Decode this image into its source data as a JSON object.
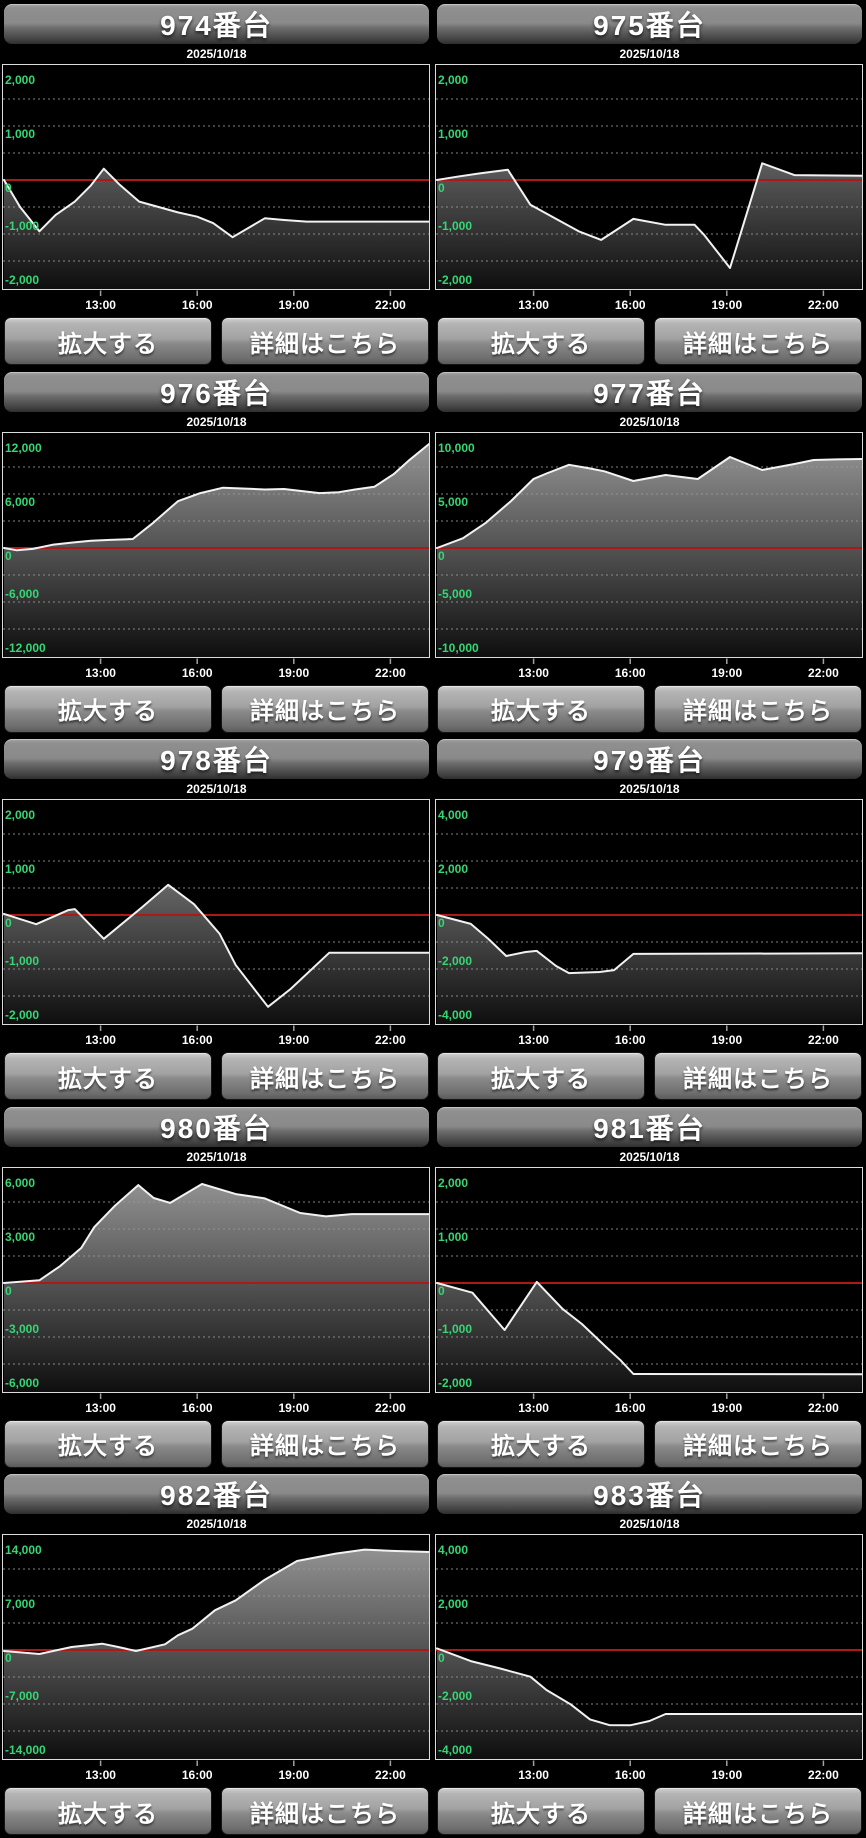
{
  "labels": {
    "date": "2025/10/18",
    "enlarge": "拡大する",
    "details": "詳細はこちら"
  },
  "axis": {
    "x_ticks": [
      "13:00",
      "16:00",
      "19:00",
      "22:00"
    ],
    "tick_hours": [
      13,
      16,
      19,
      22
    ],
    "x_start_hour": 10,
    "x_end_hour": 23.25
  },
  "colors": {
    "background": "#000000",
    "axis_label_green": "#36d674",
    "zero_line_red": "#b01818",
    "data_line": "#f2f2f2",
    "grid_dots": "#999999",
    "chart_border": "#dcdcdc",
    "fill_top": "#a8a8a8",
    "fill_bottom": "#0f0f0f",
    "tick_mark": "#a0a0a0"
  },
  "machines": [
    {
      "id": "974",
      "title": "974番台",
      "range": 2000,
      "y_labels": [
        "2,000",
        "1,000",
        "0",
        "-1,000",
        "-2,000"
      ],
      "points": [
        [
          10,
          0
        ],
        [
          10.5,
          -500
        ],
        [
          11.1,
          -950
        ],
        [
          11.6,
          -650
        ],
        [
          12.2,
          -400
        ],
        [
          12.7,
          -100
        ],
        [
          13.1,
          210
        ],
        [
          13.6,
          -90
        ],
        [
          14.2,
          -400
        ],
        [
          14.8,
          -500
        ],
        [
          15.4,
          -600
        ],
        [
          16.0,
          -680
        ],
        [
          16.5,
          -800
        ],
        [
          17.1,
          -1060
        ],
        [
          18.1,
          -710
        ],
        [
          18.7,
          -740
        ],
        [
          19.4,
          -770
        ],
        [
          23.25,
          -770
        ]
      ]
    },
    {
      "id": "975",
      "title": "975番台",
      "range": 2000,
      "y_labels": [
        "2,000",
        "1,000",
        "0",
        "-1,000",
        "-2,000"
      ],
      "points": [
        [
          10,
          0
        ],
        [
          10.6,
          60
        ],
        [
          11.3,
          120
        ],
        [
          12.2,
          190
        ],
        [
          12.9,
          -460
        ],
        [
          13.7,
          -720
        ],
        [
          14.4,
          -950
        ],
        [
          15.1,
          -1110
        ],
        [
          16.1,
          -720
        ],
        [
          17.1,
          -830
        ],
        [
          18.0,
          -830
        ],
        [
          18.3,
          -1020
        ],
        [
          19.1,
          -1630
        ],
        [
          20.1,
          310
        ],
        [
          21.1,
          90
        ],
        [
          23.25,
          80
        ]
      ]
    },
    {
      "id": "976",
      "title": "976番台",
      "range": 12000,
      "y_labels": [
        "12,000",
        "6,000",
        "0",
        "-6,000",
        "-12,000"
      ],
      "points": [
        [
          10,
          0
        ],
        [
          10.4,
          -250
        ],
        [
          10.9,
          -100
        ],
        [
          11.5,
          350
        ],
        [
          12.1,
          600
        ],
        [
          12.7,
          800
        ],
        [
          13.3,
          900
        ],
        [
          14.0,
          1000
        ],
        [
          14.6,
          2700
        ],
        [
          15.4,
          5200
        ],
        [
          16.1,
          6100
        ],
        [
          16.8,
          6700
        ],
        [
          17.5,
          6600
        ],
        [
          18.1,
          6500
        ],
        [
          18.7,
          6550
        ],
        [
          19.2,
          6350
        ],
        [
          19.8,
          6100
        ],
        [
          20.4,
          6200
        ],
        [
          20.9,
          6500
        ],
        [
          21.5,
          6800
        ],
        [
          22.1,
          8200
        ],
        [
          22.6,
          9800
        ],
        [
          23.25,
          11600
        ]
      ]
    },
    {
      "id": "977",
      "title": "977番台",
      "range": 10000,
      "y_labels": [
        "10,000",
        "5,000",
        "0",
        "-5,000",
        "-10,000"
      ],
      "points": [
        [
          10,
          0
        ],
        [
          10.8,
          900
        ],
        [
          11.5,
          2300
        ],
        [
          12.3,
          4350
        ],
        [
          13.0,
          6400
        ],
        [
          13.4,
          6900
        ],
        [
          14.1,
          7700
        ],
        [
          14.7,
          7400
        ],
        [
          15.2,
          7100
        ],
        [
          16.1,
          6200
        ],
        [
          17.1,
          6760
        ],
        [
          18.1,
          6390
        ],
        [
          19.1,
          8430
        ],
        [
          20.1,
          7220
        ],
        [
          21.1,
          7780
        ],
        [
          21.7,
          8150
        ],
        [
          22.4,
          8200
        ],
        [
          23.25,
          8240
        ]
      ]
    },
    {
      "id": "978",
      "title": "978番台",
      "range": 2000,
      "y_labels": [
        "2,000",
        "1,000",
        "0",
        "-1,000",
        "-2,000"
      ],
      "points": [
        [
          10,
          20
        ],
        [
          11.0,
          -170
        ],
        [
          12.0,
          90
        ],
        [
          12.2,
          110
        ],
        [
          13.1,
          -440
        ],
        [
          14.3,
          150
        ],
        [
          15.1,
          560
        ],
        [
          15.9,
          200
        ],
        [
          16.7,
          -350
        ],
        [
          17.2,
          -930
        ],
        [
          18.2,
          -1700
        ],
        [
          18.9,
          -1370
        ],
        [
          20.1,
          -700
        ],
        [
          23.25,
          -700
        ]
      ]
    },
    {
      "id": "979",
      "title": "979番台",
      "range": 4000,
      "y_labels": [
        "4,000",
        "2,000",
        "0",
        "-2,000",
        "-4,000"
      ],
      "points": [
        [
          10,
          0
        ],
        [
          11.05,
          -330
        ],
        [
          11.6,
          -890
        ],
        [
          12.15,
          -1520
        ],
        [
          12.75,
          -1370
        ],
        [
          13.1,
          -1330
        ],
        [
          13.7,
          -1890
        ],
        [
          14.1,
          -2150
        ],
        [
          15.05,
          -2110
        ],
        [
          15.5,
          -2040
        ],
        [
          16.1,
          -1440
        ],
        [
          23.25,
          -1420
        ]
      ]
    },
    {
      "id": "980",
      "title": "980番台",
      "range": 6000,
      "y_labels": [
        "6,000",
        "3,000",
        "0",
        "-3,000",
        "-6,000"
      ],
      "points": [
        [
          10,
          0
        ],
        [
          11.1,
          150
        ],
        [
          11.75,
          950
        ],
        [
          12.4,
          1950
        ],
        [
          12.8,
          3100
        ],
        [
          13.45,
          4300
        ],
        [
          14.17,
          5440
        ],
        [
          14.65,
          4720
        ],
        [
          15.16,
          4450
        ],
        [
          16.15,
          5500
        ],
        [
          17.2,
          4940
        ],
        [
          18.1,
          4700
        ],
        [
          19.2,
          3890
        ],
        [
          20.0,
          3700
        ],
        [
          20.8,
          3830
        ],
        [
          23.25,
          3830
        ]
      ]
    },
    {
      "id": "981",
      "title": "981番台",
      "range": 2000,
      "y_labels": [
        "2,000",
        "1,000",
        "0",
        "-1,000",
        "-2,000"
      ],
      "points": [
        [
          10,
          0
        ],
        [
          11.1,
          -180
        ],
        [
          12.1,
          -870
        ],
        [
          13.1,
          20
        ],
        [
          13.9,
          -480
        ],
        [
          14.5,
          -760
        ],
        [
          15.25,
          -1185
        ],
        [
          15.7,
          -1430
        ],
        [
          16.1,
          -1685
        ],
        [
          23.25,
          -1690
        ]
      ]
    },
    {
      "id": "982",
      "title": "982番台",
      "range": 14000,
      "y_labels": [
        "14,000",
        "7,000",
        "0",
        "-7,000",
        "-14,000"
      ],
      "points": [
        [
          10,
          -130
        ],
        [
          11.1,
          -520
        ],
        [
          12.1,
          390
        ],
        [
          13.05,
          820
        ],
        [
          13.55,
          390
        ],
        [
          14.1,
          -130
        ],
        [
          15.0,
          740
        ],
        [
          15.4,
          1905
        ],
        [
          15.85,
          2760
        ],
        [
          16.55,
          5145
        ],
        [
          17.2,
          6440
        ],
        [
          18.1,
          9110
        ],
        [
          19.1,
          11540
        ],
        [
          20.3,
          12490
        ],
        [
          21.2,
          13010
        ],
        [
          22.05,
          12840
        ],
        [
          23.25,
          12710
        ]
      ]
    },
    {
      "id": "983",
      "title": "983番台",
      "range": 4000,
      "y_labels": [
        "4,000",
        "2,000",
        "0",
        "-2,000",
        "-4,000"
      ],
      "points": [
        [
          10,
          60
        ],
        [
          11.05,
          -410
        ],
        [
          11.95,
          -680
        ],
        [
          12.9,
          -990
        ],
        [
          13.4,
          -1480
        ],
        [
          14.15,
          -2010
        ],
        [
          14.75,
          -2570
        ],
        [
          15.35,
          -2780
        ],
        [
          16.0,
          -2790
        ],
        [
          16.6,
          -2630
        ],
        [
          17.1,
          -2370
        ],
        [
          23.25,
          -2370
        ]
      ]
    }
  ]
}
